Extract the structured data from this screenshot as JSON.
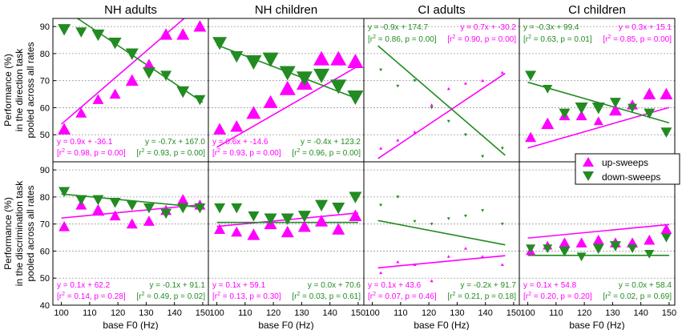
{
  "colors": {
    "up": "#ff00ff",
    "down": "#228b22",
    "grid": "#9a9a9a",
    "frame": "#000000",
    "sep": "#aaaaaa"
  },
  "figure": {
    "columns": [
      "NH adults",
      "NH children",
      "CI adults",
      "CI children"
    ],
    "row_labels": [
      [
        "Performance (%)",
        "in the direction task",
        "pooled across all rates"
      ],
      [
        "Performance (%)",
        "in the discrimination task",
        "pooled across all rates"
      ]
    ],
    "xlabel": "base F0 (Hz)",
    "xticks": [
      100,
      110,
      120,
      130,
      140,
      150
    ],
    "yticks": [
      40,
      50,
      60,
      70,
      80,
      90
    ],
    "xlim": [
      97,
      152
    ],
    "ylim": [
      40,
      93
    ],
    "legend": {
      "up": "up-sweeps",
      "down": "down-sweeps"
    }
  },
  "chart_data": [
    {
      "type": "scatter",
      "title": "NH adults",
      "row": 0,
      "col": 0,
      "ylabel": "Performance (%) in the direction task pooled across all rates",
      "xlabel": "",
      "up": {
        "x": [
          101,
          107,
          113,
          119,
          125,
          131,
          137,
          143,
          149
        ],
        "y": [
          52,
          58,
          63,
          65,
          70,
          76,
          87,
          87,
          90
        ],
        "size": [
          8,
          7,
          7,
          7,
          8,
          7,
          8,
          8,
          8
        ]
      },
      "down": {
        "x": [
          101,
          107,
          113,
          119,
          125,
          131,
          137,
          143,
          149
        ],
        "y": [
          89,
          88,
          87,
          84,
          80,
          73,
          72,
          66,
          63
        ],
        "size": [
          8,
          7,
          8,
          8,
          8,
          8,
          7,
          8,
          7
        ]
      },
      "fit_up": {
        "slope": 0.9,
        "intercept": -36.1
      },
      "fit_down": {
        "slope": -0.7,
        "intercept": 167.0
      },
      "eq_up": "y = 0.9x + -36.1",
      "stat_up": "[r² = 0.98, p = 0.00]",
      "eq_down": "y = -0.7x + 167.0",
      "stat_down": "[r² = 0.93, p = 0.00]",
      "eq_pos": "bottom"
    },
    {
      "type": "scatter",
      "title": "NH children",
      "row": 0,
      "col": 1,
      "xlabel": "",
      "up": {
        "x": [
          101,
          107,
          113,
          119,
          125,
          131,
          137,
          143,
          149
        ],
        "y": [
          52,
          53,
          58,
          62,
          67,
          69,
          78,
          78,
          77
        ],
        "size": [
          8,
          8,
          9,
          9,
          10,
          10,
          10,
          10,
          10
        ]
      },
      "down": {
        "x": [
          101,
          107,
          113,
          119,
          125,
          131,
          137,
          143,
          149
        ],
        "y": [
          84,
          79,
          77,
          78,
          73,
          71,
          72,
          68,
          64
        ],
        "size": [
          9,
          8,
          10,
          10,
          10,
          10,
          10,
          10,
          10
        ]
      },
      "fit_up": {
        "slope": 0.6,
        "intercept": -14.6
      },
      "fit_down": {
        "slope": -0.4,
        "intercept": 123.2
      },
      "eq_up": "y = 0.6x + -14.6",
      "stat_up": "[r² = 0.93, p = 0.00]",
      "eq_down": "y = -0.4x + 123.2",
      "stat_down": "[r² = 0.96, p = 0.00]",
      "eq_pos": "bottom"
    },
    {
      "type": "scatter",
      "title": "CI adults",
      "row": 0,
      "col": 2,
      "xlabel": "",
      "up": {
        "x": [
          103,
          109,
          115,
          121,
          127,
          133,
          139,
          146
        ],
        "y": [
          45,
          48,
          51,
          61,
          67,
          69,
          70,
          73
        ],
        "size": [
          2,
          2,
          2,
          2,
          2,
          2,
          2,
          2
        ]
      },
      "down": {
        "x": [
          103,
          109,
          115,
          121,
          127,
          133,
          139,
          146
        ],
        "y": [
          74,
          68,
          70,
          60,
          55,
          50,
          42,
          45
        ],
        "size": [
          2,
          2,
          2,
          2,
          2,
          2,
          2,
          2
        ]
      },
      "fit_up": {
        "slope": 0.7,
        "intercept": -30.2
      },
      "fit_down": {
        "slope": -0.9,
        "intercept": 174.7
      },
      "eq_up": "y = 0.7x + -30.2",
      "stat_up": "[r² = 0.90, p = 0.00]",
      "eq_down": "y = -0.9x + 174.7",
      "stat_down": "[r² = 0.86, p = 0.00]",
      "eq_pos": "top"
    },
    {
      "type": "scatter",
      "title": "CI children",
      "row": 0,
      "col": 3,
      "xlabel": "",
      "up": {
        "x": [
          101,
          107,
          113,
          119,
          125,
          131,
          137,
          143,
          149
        ],
        "y": [
          49,
          54,
          57,
          57,
          55,
          59,
          61,
          65,
          65
        ],
        "size": [
          7,
          8,
          7,
          7,
          6,
          8,
          7,
          8,
          8
        ]
      },
      "down": {
        "x": [
          101,
          107,
          113,
          119,
          125,
          131,
          137,
          143,
          149
        ],
        "y": [
          72,
          67,
          58,
          60,
          60,
          62,
          60,
          58,
          51
        ],
        "size": [
          7,
          6,
          7,
          8,
          8,
          7,
          6,
          7,
          7
        ]
      },
      "fit_up": {
        "slope": 0.3,
        "intercept": 15.1
      },
      "fit_down": {
        "slope": -0.3,
        "intercept": 99.4
      },
      "eq_up": "y = 0.3x + 15.1",
      "stat_up": "[r² = 0.85, p = 0.00]",
      "eq_down": "y = -0.3x + 99.4",
      "stat_down": "[r² = 0.63, p = 0.01]",
      "eq_pos": "top"
    },
    {
      "type": "scatter",
      "title": "",
      "row": 1,
      "col": 0,
      "ylabel": "Performance (%) in the discrimination task pooled across all rates",
      "xlabel": "base F0 (Hz)",
      "up": {
        "x": [
          101,
          107,
          113,
          119,
          125,
          131,
          137,
          143,
          149
        ],
        "y": [
          69,
          77,
          75,
          73,
          70,
          71,
          75,
          79,
          77
        ],
        "size": [
          7,
          7,
          8,
          7,
          7,
          7,
          7,
          7,
          7
        ]
      },
      "down": {
        "x": [
          101,
          107,
          113,
          119,
          125,
          131,
          137,
          143,
          149
        ],
        "y": [
          82,
          79,
          79,
          78,
          77,
          76,
          74,
          76,
          76
        ],
        "size": [
          7,
          7,
          7,
          7,
          7,
          7,
          7,
          7,
          7
        ]
      },
      "fit_up": {
        "slope": 0.1,
        "intercept": 62.2
      },
      "fit_down": {
        "slope": -0.1,
        "intercept": 91.1
      },
      "eq_up": "y = 0.1x + 62.2",
      "stat_up": "[r² = 0.14, p = 0.28]",
      "eq_down": "y = -0.1x + 91.1",
      "stat_down": "[r² = 0.49, p = 0.02]",
      "eq_pos": "bottom"
    },
    {
      "type": "scatter",
      "title": "",
      "row": 1,
      "col": 1,
      "xlabel": "base F0 (Hz)",
      "up": {
        "x": [
          101,
          107,
          113,
          119,
          125,
          131,
          137,
          143,
          149
        ],
        "y": [
          68,
          67,
          66,
          70,
          67,
          69,
          71,
          68,
          73
        ],
        "size": [
          7,
          7,
          8,
          8,
          8,
          8,
          8,
          8,
          8
        ]
      },
      "down": {
        "x": [
          101,
          107,
          113,
          119,
          125,
          131,
          137,
          143,
          149
        ],
        "y": [
          76,
          76,
          73,
          72,
          72,
          73,
          77,
          76,
          80
        ],
        "size": [
          7,
          7,
          7,
          8,
          8,
          8,
          8,
          8,
          8
        ]
      },
      "fit_up": {
        "slope": 0.1,
        "intercept": 59.1
      },
      "fit_down": {
        "slope": 0.0,
        "intercept": 70.6
      },
      "eq_up": "y = 0.1x + 59.1",
      "stat_up": "[r² = 0.13, p = 0.30]",
      "eq_down": "y = 0.0x + 70.6",
      "stat_down": "[r² = 0.03, p = 0.61]",
      "eq_pos": "bottom"
    },
    {
      "type": "scatter",
      "title": "",
      "row": 1,
      "col": 2,
      "xlabel": "base F0 (Hz)",
      "up": {
        "x": [
          103,
          109,
          115,
          121,
          127,
          133,
          139,
          146
        ],
        "y": [
          52,
          56,
          55,
          49,
          58,
          61,
          58,
          55
        ],
        "size": [
          2,
          2,
          2,
          2,
          2,
          2,
          2,
          2
        ]
      },
      "down": {
        "x": [
          103,
          109,
          115,
          121,
          127,
          133,
          139,
          146
        ],
        "y": [
          77,
          80,
          71,
          70,
          72,
          73,
          75,
          70
        ],
        "size": [
          2,
          2,
          2,
          2,
          2,
          2,
          2,
          2
        ]
      },
      "fit_up": {
        "slope": 0.1,
        "intercept": 43.6
      },
      "fit_down": {
        "slope": -0.2,
        "intercept": 91.7
      },
      "eq_up": "y = 0.1x + 43.6",
      "stat_up": "[r² = 0.07, p = 0.46]",
      "eq_down": "y = -0.2x + 91.7",
      "stat_down": "[r² = 0.21, p = 0.18]",
      "eq_pos": "bottom"
    },
    {
      "type": "scatter",
      "title": "",
      "row": 1,
      "col": 3,
      "xlabel": "base F0 (Hz)",
      "up": {
        "x": [
          101,
          107,
          113,
          119,
          125,
          131,
          137,
          143,
          149
        ],
        "y": [
          60,
          62,
          63,
          63,
          64,
          63,
          63,
          64,
          68
        ],
        "size": [
          6,
          6,
          7,
          7,
          7,
          7,
          7,
          7,
          7
        ]
      },
      "down": {
        "x": [
          101,
          107,
          113,
          119,
          125,
          131,
          137,
          143,
          149
        ],
        "y": [
          61,
          61,
          60,
          58,
          61,
          62,
          61,
          59,
          65
        ],
        "size": [
          6,
          6,
          7,
          6,
          7,
          7,
          6,
          6,
          6
        ]
      },
      "fit_up": {
        "slope": 0.1,
        "intercept": 54.8
      },
      "fit_down": {
        "slope": 0.0,
        "intercept": 58.4
      },
      "eq_up": "y = 0.1x + 54.8",
      "stat_up": "[r² = 0.20, p = 0.20]",
      "eq_down": "y = 0.0x + 58.4",
      "stat_down": "[r² = 0.02, p = 0.69]",
      "eq_pos": "bottom"
    }
  ]
}
